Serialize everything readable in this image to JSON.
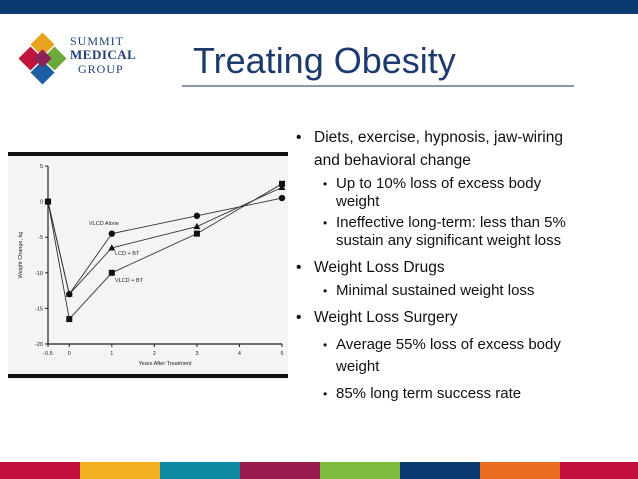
{
  "logo": {
    "line1": "SUMMIT",
    "line2": "MEDICAL",
    "line3": "GROUP"
  },
  "slide_title": "Treating Obesity",
  "bullets": {
    "b1_line1": "Diets, exercise, hypnosis, jaw-wiring",
    "b1_line2": "and behavioral change",
    "b1_sub1_line1": "Up to 10% loss of excess body",
    "b1_sub1_line2": "weight",
    "b1_sub2_line1": "Ineffective long-term: less than 5%",
    "b1_sub2_line2": "sustain any significant weight loss",
    "b2": "Weight Loss Drugs",
    "b2_sub1": "Minimal sustained weight loss",
    "b3": "Weight Loss Surgery",
    "b3_sub1_line1": "Average 55% loss of excess body",
    "b3_sub1_line2": "weight",
    "b3_sub2": "85% long term success rate"
  },
  "chart_data": {
    "type": "line",
    "xlabel": "Years After Treatment",
    "ylabel": "Weight Change, kg",
    "x_ticks": [
      "-0.5",
      "0",
      "1",
      "2",
      "3",
      "4",
      "5"
    ],
    "y_ticks": [
      "5",
      "0",
      "-5",
      "-10",
      "-15",
      "-20"
    ],
    "xlim": [
      -0.5,
      5
    ],
    "ylim": [
      -20,
      5
    ],
    "series": [
      {
        "name": "VLCD Alone",
        "marker": "circle",
        "x": [
          -0.5,
          0,
          1,
          3,
          5
        ],
        "y": [
          0,
          -13,
          -4.5,
          -2,
          0.5
        ]
      },
      {
        "name": "LCD + BT",
        "marker": "triangle",
        "x": [
          -0.5,
          0,
          1,
          3,
          5
        ],
        "y": [
          0,
          -13,
          -6.5,
          -3.5,
          2
        ]
      },
      {
        "name": "VLCD + BT",
        "marker": "square",
        "x": [
          -0.5,
          0,
          1,
          3,
          5
        ],
        "y": [
          0,
          -16.5,
          -10,
          -4.5,
          2.5
        ]
      }
    ]
  },
  "footer_colors": [
    "#c00f3d",
    "#f2b01e",
    "#0d8aa3",
    "#9b1a4d",
    "#7dbb41",
    "#0b3a73",
    "#e86d1f",
    "#c00f3d"
  ]
}
